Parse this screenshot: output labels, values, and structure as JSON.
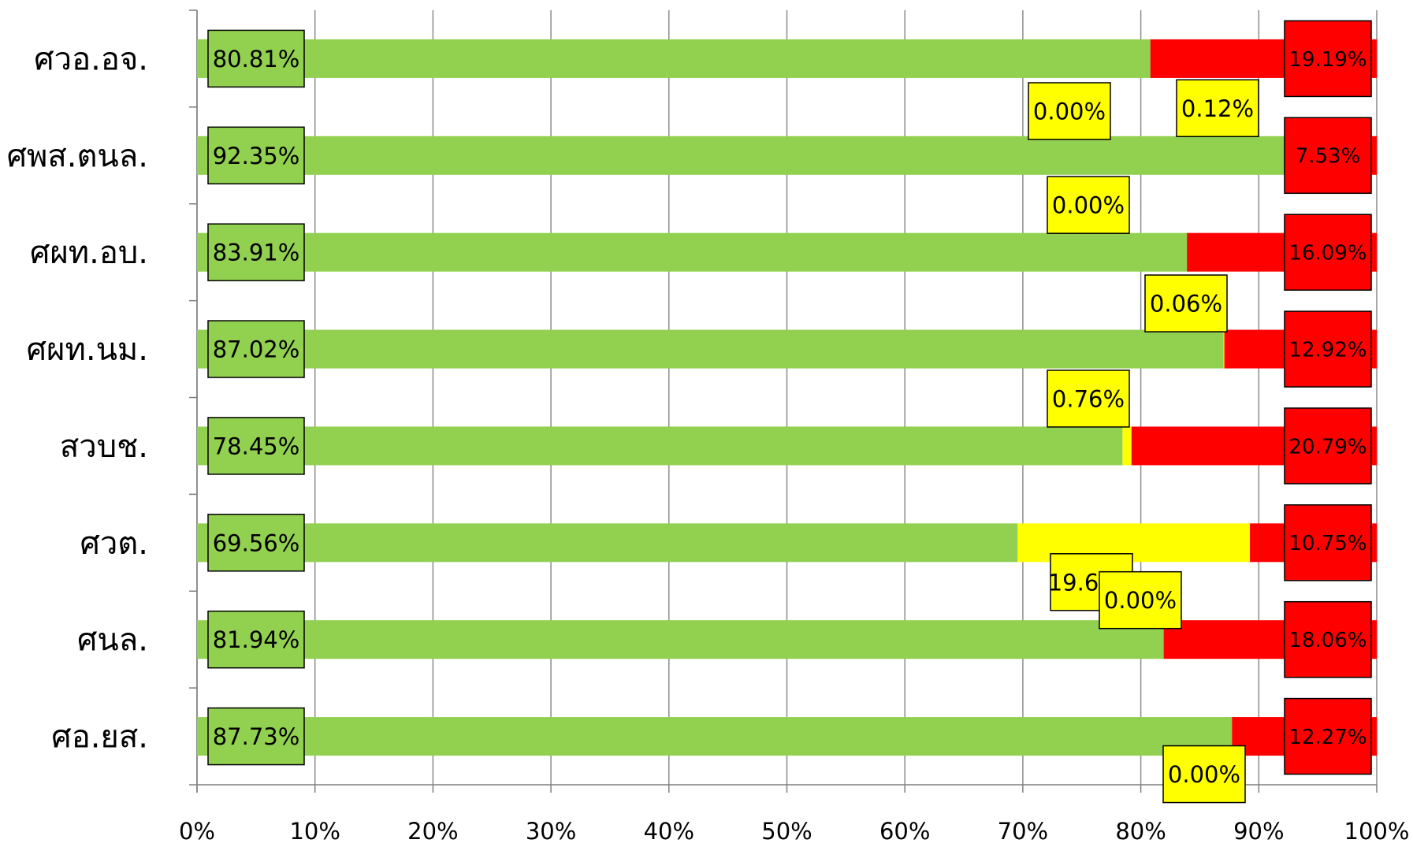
{
  "chart_data": {
    "type": "bar",
    "orientation": "horizontal",
    "stacked": "percent",
    "categories": [
      "ศวอ.อจ.",
      "ศพส.ตนล.",
      "ศผท.อบ.",
      "ศผท.นม.",
      "สวบช.",
      "ศวต.",
      "ศนล.",
      "ศอ.ยส."
    ],
    "series": [
      {
        "color": "#92D050",
        "values": [
          80.81,
          92.35,
          83.91,
          87.02,
          78.45,
          69.56,
          81.94,
          87.73
        ],
        "labels": [
          "80.81%",
          "92.35%",
          "83.91%",
          "87.02%",
          "78.45%",
          "69.56%",
          "81.94%",
          "87.73%"
        ]
      },
      {
        "color": "#FFFF00",
        "values": [
          0.0,
          0.12,
          0.0,
          0.06,
          0.76,
          19.69,
          0.0,
          0.0
        ],
        "labels": [
          "0.00%",
          "0.12%",
          "0.00%",
          "0.06%",
          "0.76%",
          "19.69%",
          "0.00%",
          "0.00%"
        ]
      },
      {
        "color": "#FF0000",
        "values": [
          19.19,
          7.53,
          16.09,
          12.92,
          20.79,
          10.75,
          18.06,
          12.27
        ],
        "labels": [
          "19.19%",
          "7.53%",
          "16.09%",
          "12.92%",
          "20.79%",
          "10.75%",
          "18.06%",
          "12.27%"
        ]
      }
    ],
    "xlim": [
      0,
      100
    ],
    "xticks": [
      "0%",
      "10%",
      "20%",
      "30%",
      "40%",
      "50%",
      "60%",
      "70%",
      "80%",
      "90%",
      "100%"
    ],
    "grid": true,
    "legend": "none",
    "title": "",
    "xlabel": "",
    "ylabel": ""
  }
}
